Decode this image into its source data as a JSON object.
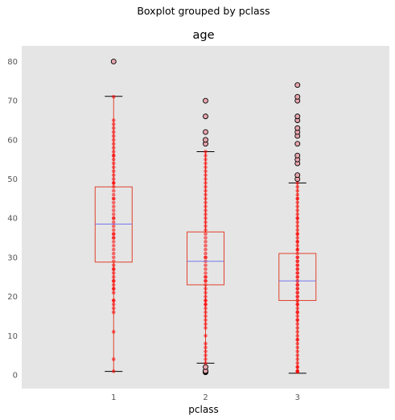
{
  "chart_data": {
    "type": "boxplot",
    "suptitle": "Boxplot grouped by pclass",
    "title": "age",
    "xlabel": "pclass",
    "ylabel": "",
    "categories": [
      "1",
      "2",
      "3"
    ],
    "ylim": [
      -3.5,
      84
    ],
    "yticks": [
      0,
      10,
      20,
      30,
      40,
      50,
      60,
      70,
      80
    ],
    "grid": false,
    "colors": {
      "background": "#e5e5e5",
      "box": "#e2402a",
      "median": "#7777ee",
      "points": "#ff0000",
      "outlier_fill": "#e8a6ae",
      "cap": "#000000"
    },
    "boxes": [
      {
        "category": "1",
        "whisker_low": 0.9,
        "q1": 28.8,
        "median": 38.5,
        "q3": 48.0,
        "whisker_high": 71.1,
        "outliers": [
          80
        ],
        "points": [
          0.92,
          4,
          11,
          16,
          17,
          18,
          19,
          19,
          21,
          22,
          22,
          23,
          24,
          24,
          25,
          26,
          27,
          27,
          28,
          29,
          30,
          31,
          32,
          33,
          34,
          35,
          35,
          36,
          36,
          37,
          38,
          39,
          40,
          40,
          41,
          42,
          43,
          44,
          45,
          45,
          46,
          47,
          48,
          49,
          49,
          50,
          51,
          52,
          53,
          54,
          55,
          56,
          56,
          57,
          58,
          59,
          60,
          61,
          62,
          63,
          64,
          65,
          71
        ]
      },
      {
        "category": "2",
        "whisker_low": 3.0,
        "q1": 23.0,
        "median": 29.0,
        "q3": 36.5,
        "whisker_high": 57.0,
        "outliers": [
          0.67,
          0.83,
          0.92,
          1,
          1,
          2,
          59,
          60,
          62,
          66,
          70
        ],
        "points": [
          3,
          4,
          5,
          6,
          7,
          8,
          10,
          12,
          13,
          14,
          15,
          16,
          17,
          18,
          18,
          19,
          19,
          20,
          21,
          22,
          23,
          24,
          24,
          25,
          25,
          26,
          27,
          28,
          29,
          30,
          30,
          31,
          32,
          33,
          34,
          35,
          36,
          37,
          38,
          39,
          40,
          41,
          42,
          43,
          44,
          45,
          46,
          47,
          48,
          49,
          50,
          51,
          52,
          53,
          54,
          55,
          56,
          57
        ]
      },
      {
        "category": "3",
        "whisker_low": 0.42,
        "q1": 19.0,
        "median": 24.0,
        "q3": 31.0,
        "whisker_high": 49.0,
        "outliers": [
          50,
          51,
          54,
          55,
          56,
          59,
          61,
          62,
          63,
          65,
          66,
          70,
          71,
          74
        ],
        "points": [
          0.75,
          1,
          1,
          2,
          2,
          3,
          4,
          5,
          6,
          7,
          8,
          9,
          9,
          10,
          11,
          12,
          13,
          14,
          14,
          15,
          16,
          16,
          17,
          18,
          18,
          19,
          19,
          20,
          20,
          21,
          21,
          22,
          22,
          23,
          23,
          24,
          24,
          25,
          25,
          26,
          26,
          27,
          27,
          28,
          28,
          29,
          29,
          30,
          30,
          31,
          32,
          32,
          33,
          34,
          34,
          35,
          36,
          36,
          37,
          38,
          39,
          40,
          40,
          41,
          42,
          43,
          44,
          45,
          45,
          46,
          47,
          48,
          49
        ]
      }
    ]
  }
}
